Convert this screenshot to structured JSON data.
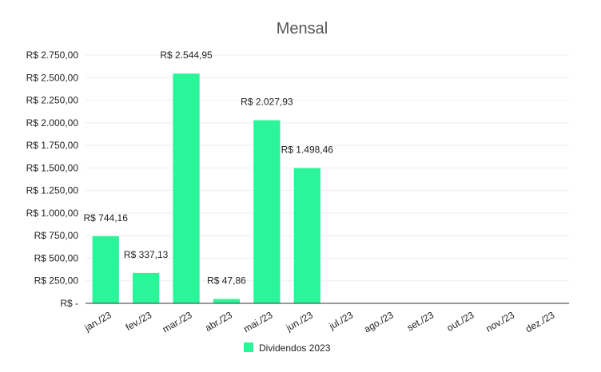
{
  "chart_data": {
    "type": "bar",
    "title": "Mensal",
    "xlabel": "",
    "ylabel": "",
    "categories": [
      "jan./23",
      "fev./23",
      "mar./23",
      "abr./23",
      "mai./23",
      "jun./23",
      "jul./23",
      "ago./23",
      "set./23",
      "out./23",
      "nov./23",
      "dez./23"
    ],
    "series": [
      {
        "name": "Dividendos 2023",
        "color": "#2af598",
        "values": [
          744.16,
          337.13,
          2544.95,
          47.86,
          2027.93,
          1498.46,
          null,
          null,
          null,
          null,
          null,
          null
        ],
        "data_labels": [
          "R$  744,16",
          "R$  337,13",
          "R$  2.544,95",
          "R$  47,86",
          "R$  2.027,93",
          "R$  1.498,46",
          "",
          "",
          "",
          "",
          "",
          ""
        ]
      }
    ],
    "ylim": [
      0,
      2750
    ],
    "yticks": [
      0,
      250,
      500,
      750,
      1000,
      1250,
      1500,
      1750,
      2000,
      2250,
      2500,
      2750
    ],
    "ytick_labels": [
      "R$  -",
      "R$ 250,00",
      "R$ 500,00",
      "R$ 750,00",
      "R$ 1.000,00",
      "R$ 1.250,00",
      "R$ 1.500,00",
      "R$ 1.750,00",
      "R$ 2.000,00",
      "R$ 2.250,00",
      "R$ 2.500,00",
      "R$ 2.750,00"
    ],
    "grid": true,
    "legend_position": "bottom"
  }
}
